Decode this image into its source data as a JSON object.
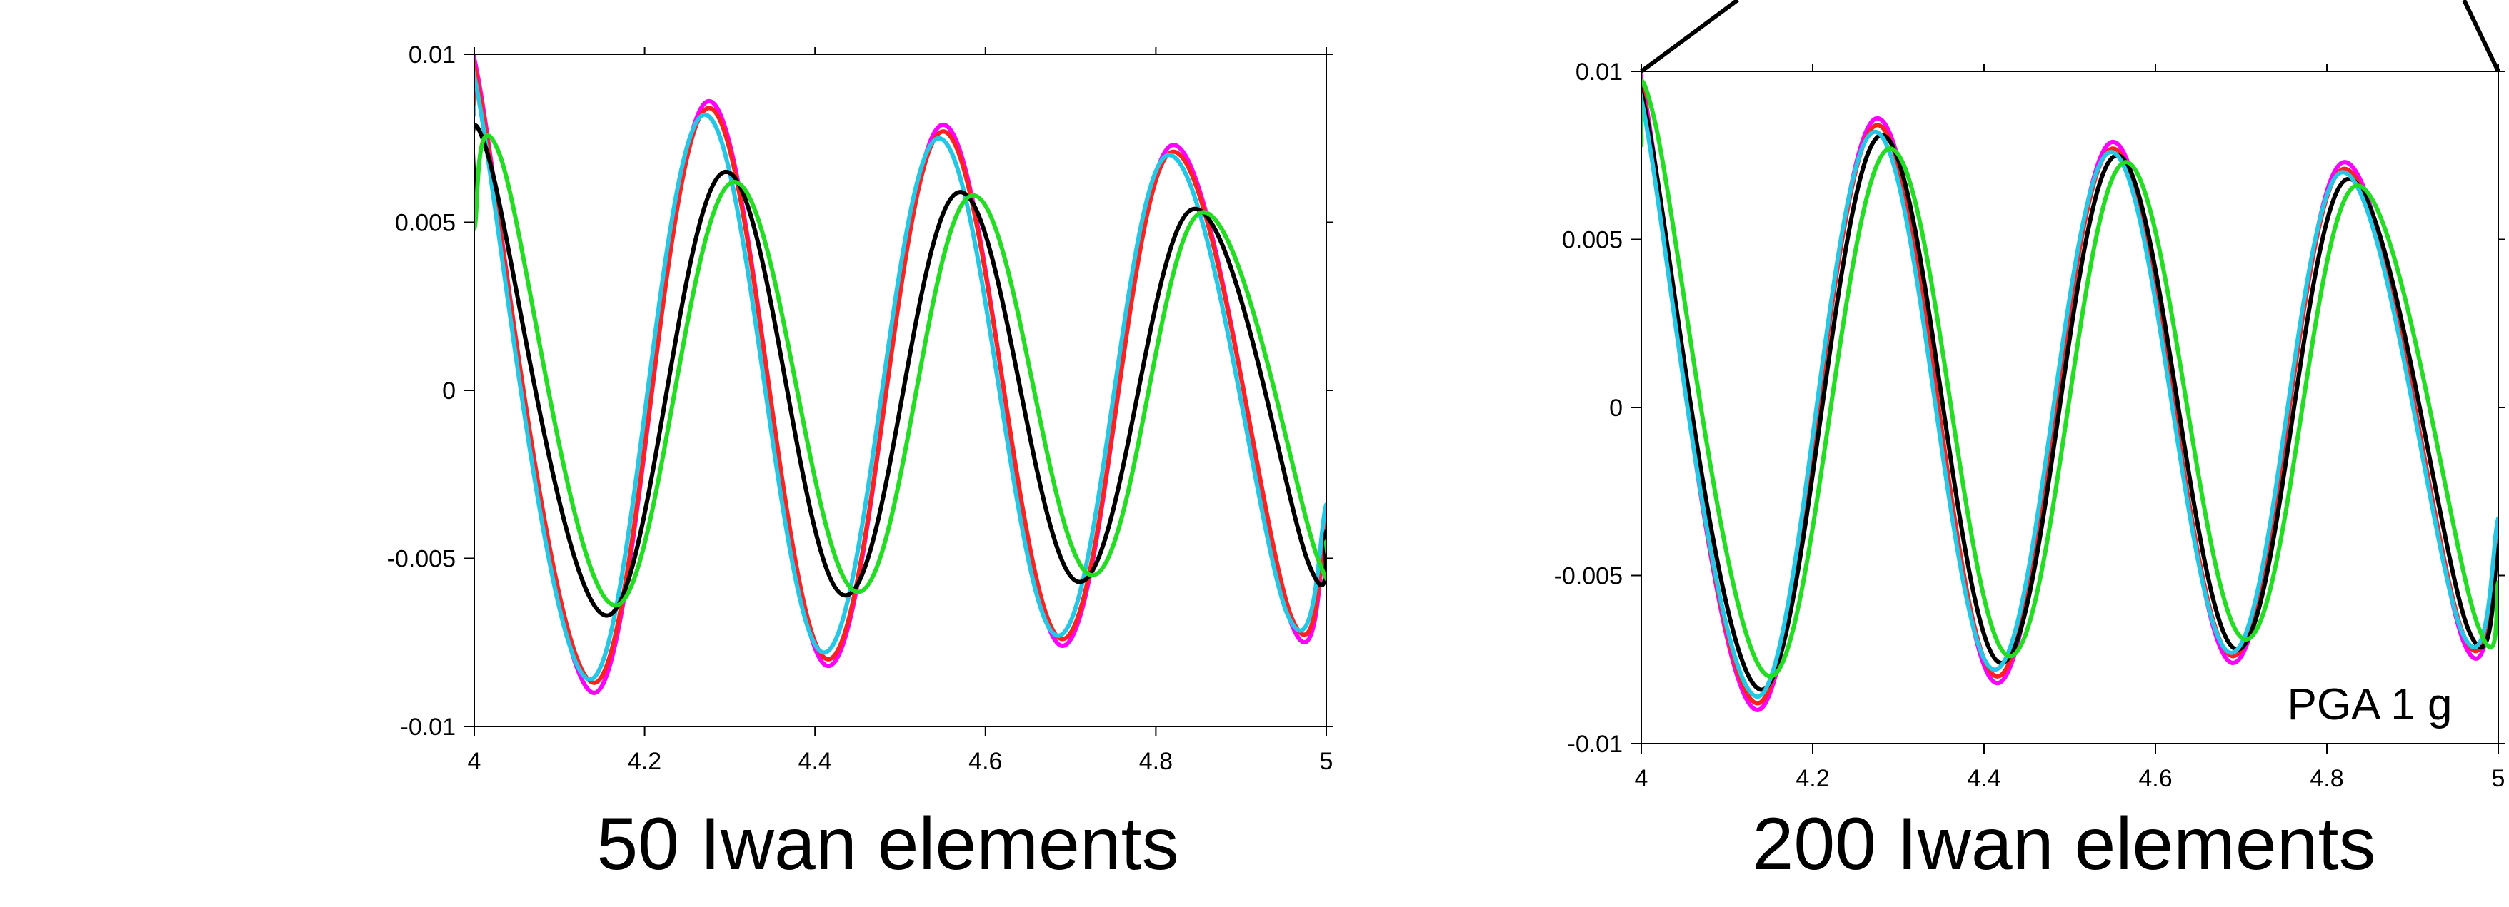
{
  "colors": {
    "background": "#ffffff",
    "axes": "#000000",
    "magenta": "#ff00ff",
    "red": "#ff2020",
    "black": "#000000",
    "cyan": "#22c8e6",
    "green": "#22dd22"
  },
  "chart_data": [
    {
      "type": "line",
      "caption": "50 Iwan elements",
      "annotation": "",
      "xlim": [
        4,
        5
      ],
      "ylim": [
        -0.01,
        0.01
      ],
      "grid": false,
      "xticks": [
        "4",
        "4.2",
        "4.4",
        "4.6",
        "4.8",
        "5"
      ],
      "yticks": [
        "-0.01",
        "-0.005",
        "0",
        "0.005",
        "0.01"
      ],
      "series": [
        {
          "color": "magenta",
          "x": [
            4.0,
            4.003,
            4.14,
            4.275,
            4.415,
            4.55,
            4.69,
            4.82,
            4.96,
            5.0
          ],
          "y": [
            0.0087,
            0.0095,
            -0.009,
            0.0086,
            -0.0082,
            0.0079,
            -0.0076,
            0.0073,
            -0.007,
            -0.0038
          ]
        },
        {
          "color": "red",
          "x": [
            4.0,
            4.003,
            4.14,
            4.275,
            4.415,
            4.55,
            4.69,
            4.82,
            4.96,
            5.0
          ],
          "y": [
            0.0085,
            0.0093,
            -0.0087,
            0.0084,
            -0.008,
            0.0077,
            -0.0074,
            0.0071,
            -0.0068,
            -0.0036
          ]
        },
        {
          "color": "cyan",
          "x": [
            4.0,
            4.002,
            4.135,
            4.27,
            4.41,
            4.545,
            4.685,
            4.815,
            4.955,
            5.0
          ],
          "y": [
            0.0082,
            0.0091,
            -0.0086,
            0.0082,
            -0.0078,
            0.0075,
            -0.0073,
            0.007,
            -0.0067,
            -0.0034
          ]
        },
        {
          "color": "black",
          "x": [
            4.0,
            4.015,
            4.155,
            4.295,
            4.435,
            4.57,
            4.71,
            4.845,
            4.98,
            5.0
          ],
          "y": [
            0.0058,
            0.0071,
            -0.0067,
            0.0065,
            -0.0061,
            0.0059,
            -0.0057,
            0.0054,
            -0.0052,
            -0.0042
          ]
        },
        {
          "color": "green",
          "x": [
            4.0,
            4.03,
            4.165,
            4.305,
            4.45,
            4.585,
            4.725,
            4.855,
            4.99,
            5.0
          ],
          "y": [
            0.0048,
            0.007,
            -0.0064,
            0.0062,
            -0.006,
            0.0058,
            -0.0055,
            0.0053,
            -0.005,
            -0.0045
          ]
        }
      ]
    },
    {
      "type": "line",
      "caption": "200 Iwan elements",
      "annotation": "PGA 1 g",
      "xlim": [
        4,
        5
      ],
      "ylim": [
        -0.01,
        0.01
      ],
      "grid": false,
      "xticks": [
        "4",
        "4.2",
        "4.4",
        "4.6",
        "4.8",
        "5"
      ],
      "yticks": [
        "-0.01",
        "-0.005",
        "0",
        "0.005",
        "0.01"
      ],
      "series": [
        {
          "color": "magenta",
          "x": [
            4.0,
            4.003,
            4.135,
            4.275,
            4.415,
            4.55,
            4.69,
            4.82,
            4.96,
            5.0
          ],
          "y": [
            0.009,
            0.0094,
            -0.009,
            0.0086,
            -0.0082,
            0.0079,
            -0.0076,
            0.0073,
            -0.007,
            -0.0036
          ]
        },
        {
          "color": "red",
          "x": [
            4.0,
            4.003,
            4.135,
            4.275,
            4.415,
            4.55,
            4.69,
            4.82,
            4.96,
            5.0
          ],
          "y": [
            0.0088,
            0.0092,
            -0.0088,
            0.0084,
            -0.008,
            0.0077,
            -0.0074,
            0.0071,
            -0.0068,
            -0.0034
          ]
        },
        {
          "color": "black",
          "x": [
            4.0,
            4.006,
            4.14,
            4.28,
            4.42,
            4.555,
            4.695,
            4.825,
            4.965,
            5.0
          ],
          "y": [
            0.0084,
            0.0087,
            -0.0084,
            0.0081,
            -0.0076,
            0.0075,
            -0.0072,
            0.0068,
            -0.0066,
            -0.0041
          ]
        },
        {
          "color": "cyan",
          "x": [
            4.0,
            4.003,
            4.135,
            4.272,
            4.412,
            4.548,
            4.688,
            4.818,
            4.958,
            5.0
          ],
          "y": [
            0.0086,
            0.0088,
            -0.0086,
            0.0082,
            -0.0078,
            0.0076,
            -0.0073,
            0.007,
            -0.0067,
            -0.0033
          ]
        },
        {
          "color": "green",
          "x": [
            4.0,
            4.015,
            4.15,
            4.29,
            4.43,
            4.565,
            4.705,
            4.835,
            4.975,
            5.0
          ],
          "y": [
            0.0078,
            0.0086,
            -0.008,
            0.0077,
            -0.0074,
            0.0073,
            -0.0069,
            0.0066,
            -0.0064,
            -0.0052
          ]
        }
      ]
    }
  ]
}
